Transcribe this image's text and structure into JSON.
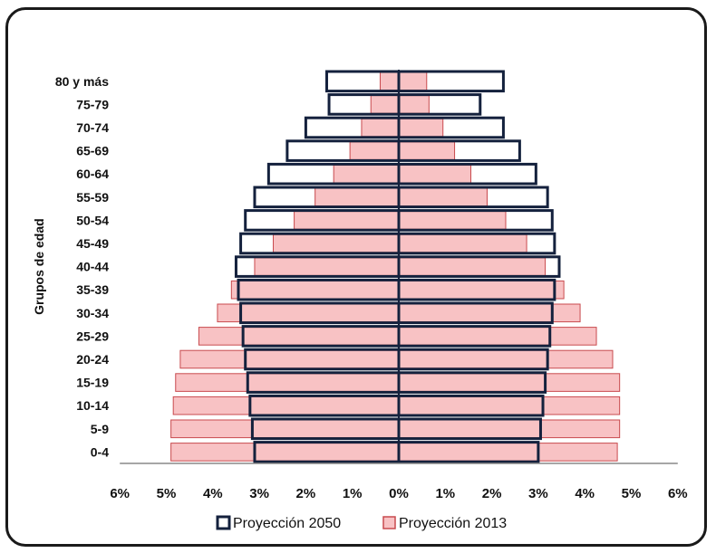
{
  "chart_data": {
    "type": "bar",
    "orientation": "horizontal-population-pyramid",
    "ylabel": "Grupos de edad",
    "xlim": [
      -6,
      6
    ],
    "x_ticks": [
      "6%",
      "5%",
      "4%",
      "3%",
      "2%",
      "1%",
      "0%",
      "1%",
      "2%",
      "3%",
      "4%",
      "5%",
      "6%"
    ],
    "categories": [
      "0-4",
      "5-9",
      "10-14",
      "15-19",
      "20-24",
      "25-29",
      "30-34",
      "35-39",
      "40-44",
      "45-49",
      "50-54",
      "55-59",
      "60-64",
      "65-69",
      "70-74",
      "75-79",
      "80 y más"
    ],
    "series": [
      {
        "name": "Proyección 2050",
        "color": "#ffffff",
        "stroke": "#14213d",
        "left": [
          3.1,
          3.15,
          3.2,
          3.25,
          3.3,
          3.35,
          3.4,
          3.45,
          3.5,
          3.4,
          3.3,
          3.1,
          2.8,
          2.4,
          2.0,
          1.5,
          1.55
        ],
        "right": [
          3.0,
          3.05,
          3.1,
          3.15,
          3.2,
          3.25,
          3.3,
          3.35,
          3.45,
          3.35,
          3.3,
          3.2,
          2.95,
          2.6,
          2.25,
          1.75,
          2.25
        ]
      },
      {
        "name": "Proyección 2013",
        "color": "#f8c2c4",
        "stroke": "#c84a4e",
        "left": [
          4.9,
          4.9,
          4.85,
          4.8,
          4.7,
          4.3,
          3.9,
          3.6,
          3.1,
          2.7,
          2.25,
          1.8,
          1.4,
          1.05,
          0.8,
          0.6,
          0.4
        ],
        "right": [
          4.7,
          4.75,
          4.75,
          4.75,
          4.6,
          4.25,
          3.9,
          3.55,
          3.15,
          2.75,
          2.3,
          1.9,
          1.55,
          1.2,
          0.95,
          0.65,
          0.6
        ]
      }
    ],
    "legend": "bottom-center",
    "grid": false
  }
}
